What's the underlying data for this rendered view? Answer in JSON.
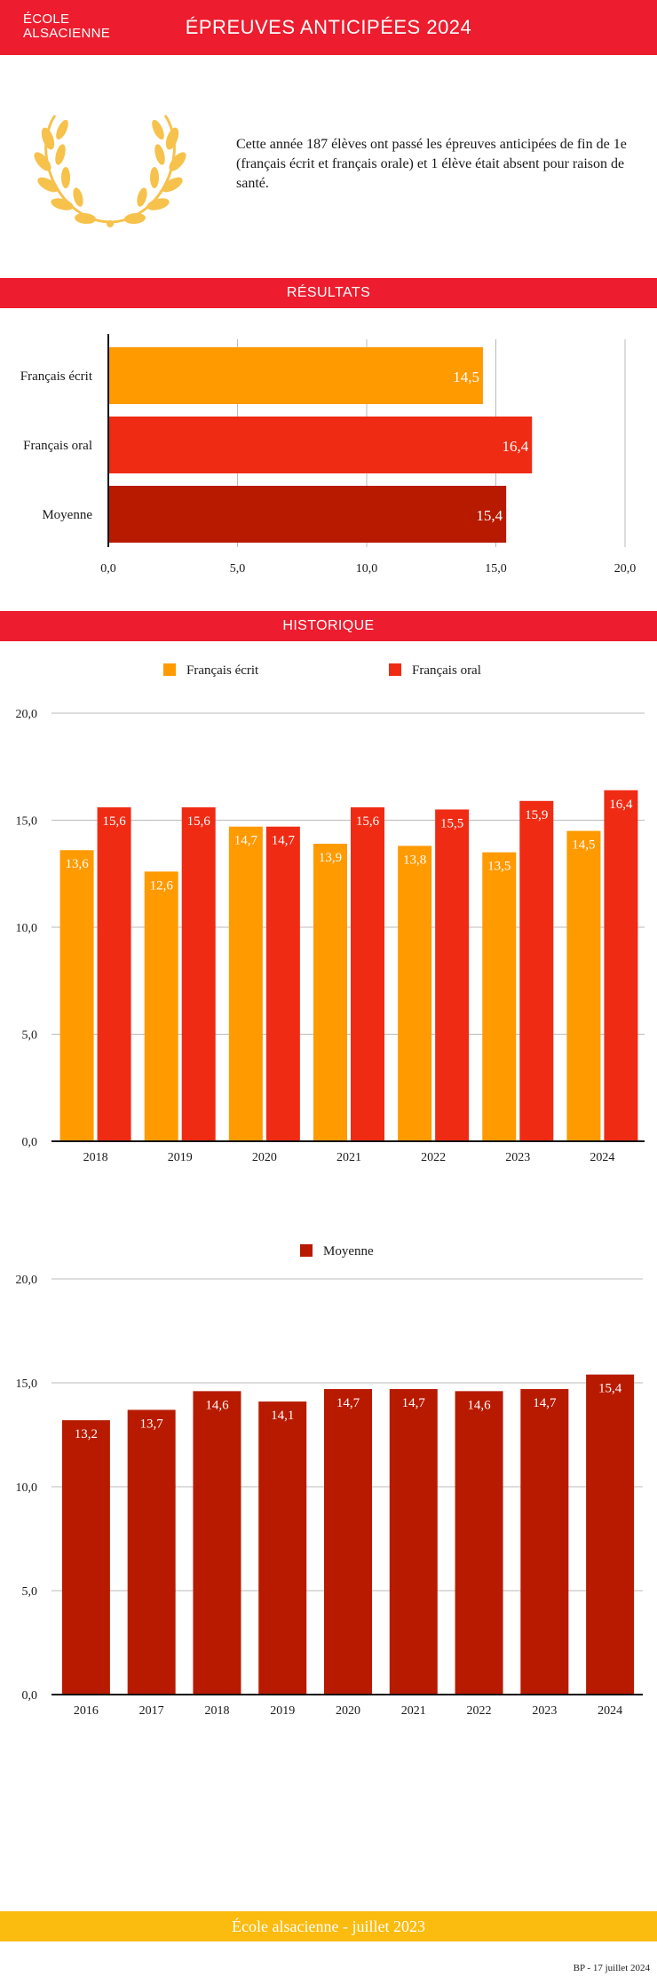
{
  "header": {
    "logo_line1": "ÉCOLE",
    "logo_line2": "ALSACIENNE",
    "title": "ÉPREUVES ANTICIPÉES 2024"
  },
  "intro": {
    "text": "Cette année 187 élèves ont passé les épreuves anticipées de fin de 1e (français écrit et français orale) et 1 élève était absent pour raison de santé."
  },
  "icons": {
    "laurel": "laurel-wreath-icon"
  },
  "sections": {
    "results": "RÉSULTATS",
    "history": "HISTORIQUE"
  },
  "colors": {
    "red": "#ed1c2e",
    "orange": "#ff9a00",
    "bright_red": "#f02b14",
    "dark_red": "#b81a00",
    "yellow": "#fbbb0f",
    "gold": "#f6c24c"
  },
  "chart_data": [
    {
      "type": "bar",
      "orientation": "horizontal",
      "categories": [
        "Français écrit",
        "Français oral",
        "Moyenne"
      ],
      "values": [
        14.5,
        16.4,
        15.4
      ],
      "labels": [
        "14,5",
        "16,4",
        "15,4"
      ],
      "colors": [
        "#ff9a00",
        "#f02b14",
        "#b81a00"
      ],
      "xlim": [
        0,
        20
      ],
      "xticks": [
        "0,0",
        "5,0",
        "10,0",
        "15,0",
        "20,0"
      ],
      "grid": true
    },
    {
      "type": "bar",
      "categories": [
        "2018",
        "2019",
        "2020",
        "2021",
        "2022",
        "2023",
        "2024"
      ],
      "series": [
        {
          "name": "Français écrit",
          "color": "#ff9a00",
          "values": [
            13.6,
            12.6,
            14.7,
            13.9,
            13.8,
            13.5,
            14.5
          ],
          "labels": [
            "13,6",
            "12,6",
            "14,7",
            "13,9",
            "13,8",
            "13,5",
            "14,5"
          ]
        },
        {
          "name": "Français oral",
          "color": "#f02b14",
          "values": [
            15.6,
            15.6,
            14.7,
            15.6,
            15.5,
            15.9,
            16.4
          ],
          "labels": [
            "15,6",
            "15,6",
            "14,7",
            "15,6",
            "15,5",
            "15,9",
            "16,4"
          ]
        }
      ],
      "ylim": [
        0,
        20
      ],
      "yticks": [
        "0,0",
        "5,0",
        "10,0",
        "15,0",
        "20,0"
      ],
      "legend": "top-center",
      "grid": true
    },
    {
      "type": "bar",
      "categories": [
        "2016",
        "2017",
        "2018",
        "2019",
        "2020",
        "2021",
        "2022",
        "2023",
        "2024"
      ],
      "series": [
        {
          "name": "Moyenne",
          "color": "#b81a00",
          "values": [
            13.2,
            13.7,
            14.6,
            14.1,
            14.7,
            14.7,
            14.6,
            14.7,
            15.4
          ],
          "labels": [
            "13,2",
            "13,7",
            "14,6",
            "14,1",
            "14,7",
            "14,7",
            "14,6",
            "14,7",
            "15,4"
          ]
        }
      ],
      "ylim": [
        0,
        20
      ],
      "yticks": [
        "0,0",
        "5,0",
        "10,0",
        "15,0",
        "20,0"
      ],
      "legend": "top-center",
      "grid": true
    }
  ],
  "footer": {
    "text": "École alsacienne - juillet 2023",
    "credit": "BP - 17 juillet 2024"
  }
}
